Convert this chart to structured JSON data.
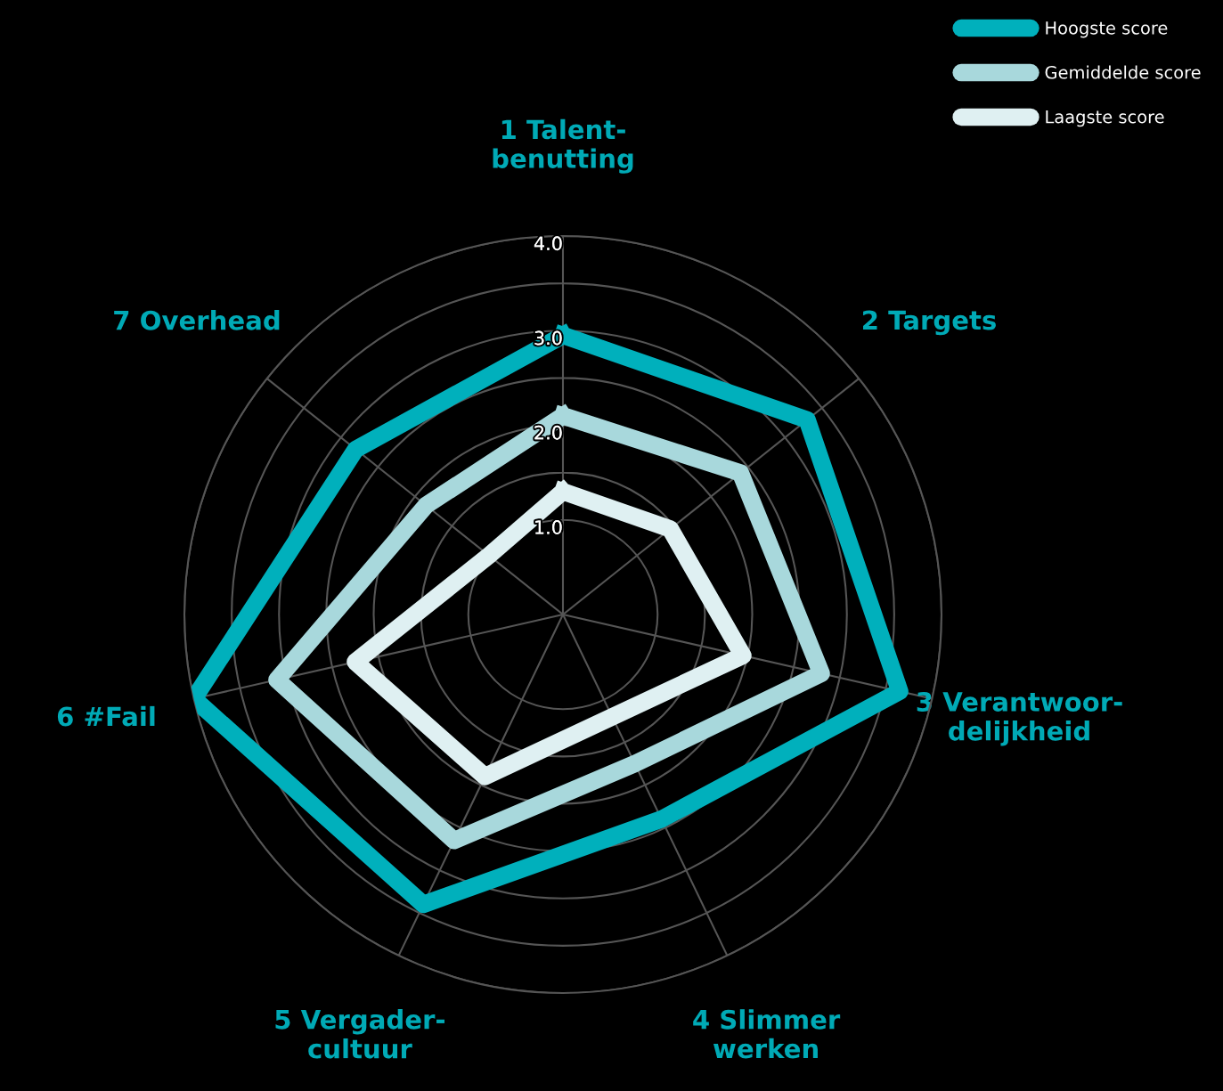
{
  "chart_data": {
    "type": "radar",
    "categories": [
      "1 Talent-\nbenutting",
      "2 Targets",
      "3 Verantwoor-\ndelijkheid",
      "4 Slimmer\nwerken",
      "5 Vergader-\ncultuur",
      "6 #Fail",
      "7 Overhead"
    ],
    "series": [
      {
        "name": "Hoogste score",
        "color": "#00b0bc",
        "values": [
          2.95,
          3.3,
          3.65,
          2.4,
          3.4,
          4.0,
          2.8
        ]
      },
      {
        "name": "Gemiddelde score",
        "color": "#a8d8dc",
        "values": [
          2.1,
          2.4,
          2.8,
          1.75,
          2.65,
          3.1,
          1.85
        ]
      },
      {
        "name": "Laagste score",
        "color": "#dff0f2",
        "values": [
          1.3,
          1.45,
          1.95,
          1.2,
          1.9,
          2.25,
          1.0
        ]
      }
    ],
    "ylim": [
      0,
      4
    ],
    "yticks": [
      {
        "value": 1.0,
        "label": "1.0"
      },
      {
        "value": 2.0,
        "label": "2.0"
      },
      {
        "value": 3.0,
        "label": "3.0"
      },
      {
        "value": 4.0,
        "label": "4.0"
      }
    ],
    "grid": true,
    "legend": "top right",
    "line_style": "solid",
    "marker": "none"
  }
}
